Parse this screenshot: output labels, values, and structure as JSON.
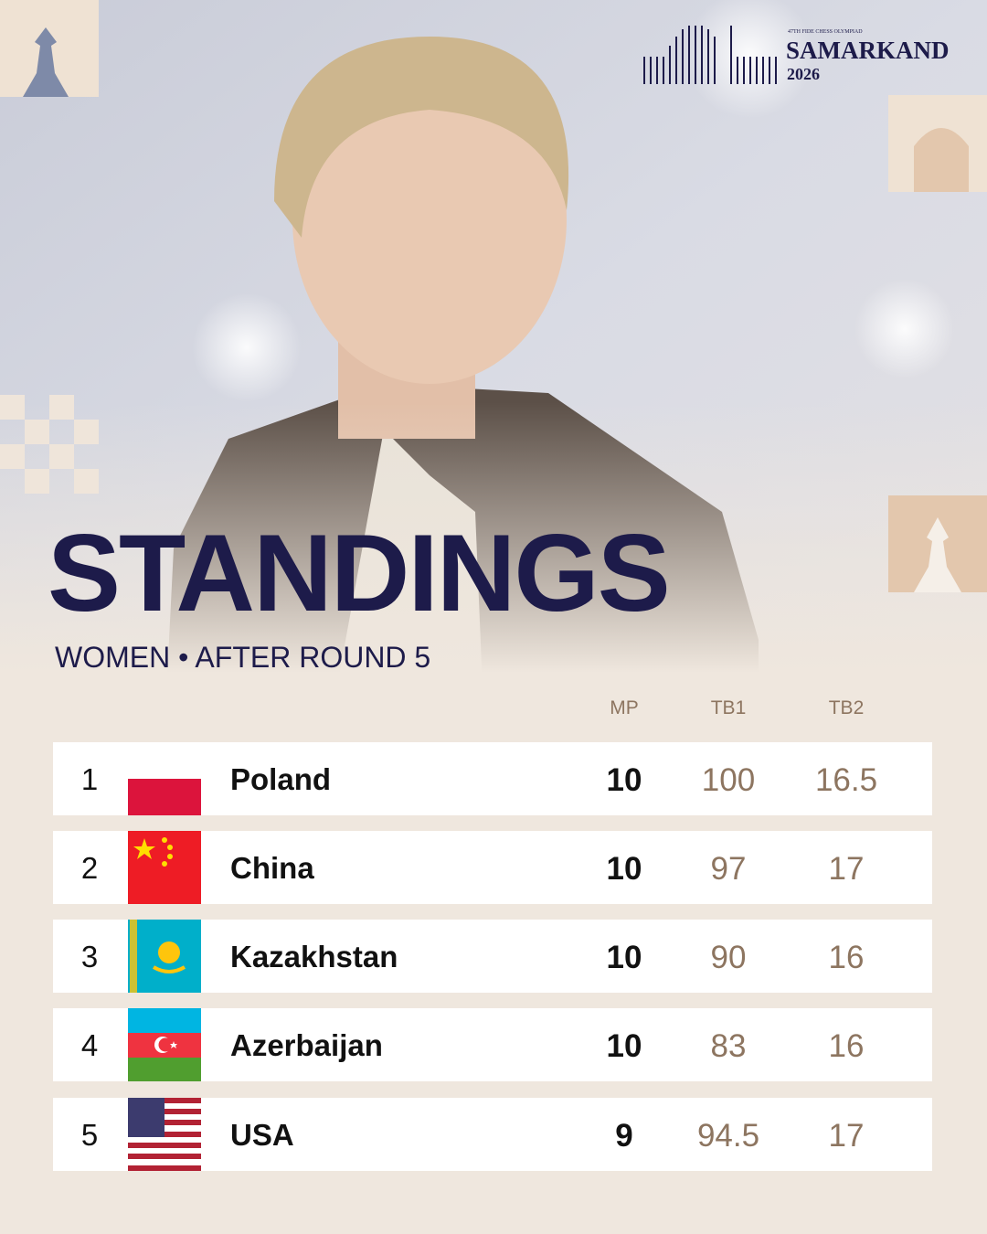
{
  "logo": {
    "event": "47TH FIDE CHESS OLYMPIAD",
    "city": "SAMARKAND",
    "year": "2026"
  },
  "title": "STANDINGS",
  "subtitle": "WOMEN • AFTER ROUND 5",
  "table": {
    "header": [
      "MP",
      "TB1",
      "TB2"
    ],
    "rows": [
      {
        "rank": 1,
        "country": "Poland",
        "mp": 10,
        "tb1": 100,
        "tb2": 16.5
      },
      {
        "rank": 2,
        "country": "China",
        "mp": 10,
        "tb1": 97,
        "tb2": 17
      },
      {
        "rank": 3,
        "country": "Kazakhstan",
        "mp": 10,
        "tb1": 90,
        "tb2": 16
      },
      {
        "rank": 4,
        "country": "Azerbaijan",
        "mp": 10,
        "tb1": 83,
        "tb2": 16
      },
      {
        "rank": 5,
        "country": "USA",
        "mp": 9,
        "tb1": 94.5,
        "tb2": 17
      }
    ]
  }
}
